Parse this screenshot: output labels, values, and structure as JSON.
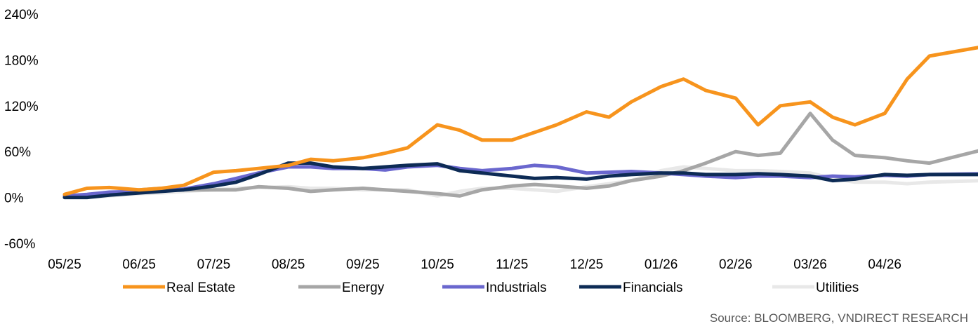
{
  "chart_data": {
    "type": "line",
    "title": "",
    "xlabel": "",
    "ylabel": "",
    "y_unit": "%",
    "ylim": [
      -60,
      240
    ],
    "y_ticks": [
      -60,
      0,
      60,
      120,
      180,
      240
    ],
    "y_tick_labels": [
      "-60%",
      "0%",
      "60%",
      "120%",
      "180%",
      "240%"
    ],
    "x_ticks": [
      "05/25",
      "06/25",
      "07/25",
      "08/25",
      "09/25",
      "10/25",
      "11/25",
      "12/25",
      "01/26",
      "02/26",
      "03/26",
      "04/26"
    ],
    "grid": false,
    "legend_position": "bottom",
    "series": [
      {
        "name": "Real Estate",
        "color": "#F7941D",
        "x": [
          0.0,
          0.3,
          0.6,
          1.0,
          1.3,
          1.6,
          2.0,
          2.3,
          2.6,
          3.0,
          3.3,
          3.6,
          4.0,
          4.3,
          4.6,
          5.0,
          5.3,
          5.6,
          6.0,
          6.3,
          6.6,
          7.0,
          7.3,
          7.6,
          8.0,
          8.3,
          8.6,
          9.0,
          9.3,
          9.6,
          10.0,
          10.3,
          10.6,
          11.0,
          11.3,
          11.6,
          12.3
        ],
        "values": [
          4,
          12,
          13,
          10,
          12,
          16,
          33,
          35,
          38,
          42,
          50,
          48,
          52,
          58,
          65,
          95,
          88,
          75,
          75,
          85,
          95,
          112,
          105,
          125,
          145,
          155,
          140,
          130,
          95,
          120,
          125,
          105,
          95,
          110,
          155,
          185,
          197
        ]
      },
      {
        "name": "Energy",
        "color": "#A6A6A6",
        "x": [
          0.0,
          0.3,
          0.6,
          1.0,
          1.3,
          1.6,
          2.0,
          2.3,
          2.6,
          3.0,
          3.3,
          3.6,
          4.0,
          4.3,
          4.6,
          5.0,
          5.3,
          5.6,
          6.0,
          6.3,
          6.6,
          7.0,
          7.3,
          7.6,
          8.0,
          8.3,
          8.6,
          9.0,
          9.3,
          9.6,
          10.0,
          10.3,
          10.6,
          11.0,
          11.3,
          11.6,
          12.3
        ],
        "values": [
          0,
          2,
          5,
          10,
          12,
          10,
          10,
          10,
          14,
          12,
          8,
          10,
          12,
          10,
          8,
          5,
          2,
          10,
          15,
          17,
          15,
          12,
          15,
          22,
          28,
          35,
          45,
          60,
          55,
          58,
          110,
          75,
          55,
          52,
          48,
          45,
          62
        ]
      },
      {
        "name": "Industrials",
        "color": "#6A67CE",
        "x": [
          0.0,
          0.3,
          0.6,
          1.0,
          1.3,
          1.6,
          2.0,
          2.3,
          2.6,
          3.0,
          3.3,
          3.6,
          4.0,
          4.3,
          4.6,
          5.0,
          5.3,
          5.6,
          6.0,
          6.3,
          6.6,
          7.0,
          7.3,
          7.6,
          8.0,
          8.3,
          8.6,
          9.0,
          9.3,
          9.6,
          10.0,
          10.3,
          10.6,
          11.0,
          11.3,
          11.6,
          12.3
        ],
        "values": [
          2,
          4,
          7,
          8,
          9,
          11,
          18,
          25,
          32,
          40,
          40,
          38,
          38,
          36,
          40,
          42,
          38,
          35,
          38,
          42,
          40,
          32,
          33,
          34,
          32,
          30,
          28,
          26,
          28,
          28,
          26,
          28,
          27,
          29,
          28,
          30,
          31
        ]
      },
      {
        "name": "Financials",
        "color": "#0D2B55",
        "x": [
          0.0,
          0.3,
          0.6,
          1.0,
          1.3,
          1.6,
          2.0,
          2.3,
          2.6,
          3.0,
          3.3,
          3.6,
          4.0,
          4.3,
          4.6,
          5.0,
          5.3,
          5.6,
          6.0,
          6.3,
          6.6,
          7.0,
          7.3,
          7.6,
          8.0,
          8.3,
          8.6,
          9.0,
          9.3,
          9.6,
          10.0,
          10.3,
          10.6,
          11.0,
          11.3,
          11.6,
          12.3
        ],
        "values": [
          0,
          0,
          3,
          6,
          8,
          10,
          15,
          20,
          30,
          45,
          45,
          40,
          38,
          40,
          42,
          44,
          35,
          32,
          28,
          25,
          26,
          24,
          28,
          30,
          32,
          32,
          30,
          30,
          31,
          30,
          28,
          22,
          24,
          30,
          29,
          30,
          30
        ]
      },
      {
        "name": "Utilities",
        "color": "#E8E8E8",
        "x": [
          0.0,
          0.3,
          0.6,
          1.0,
          1.3,
          1.6,
          2.0,
          2.3,
          2.6,
          3.0,
          3.3,
          3.6,
          4.0,
          4.3,
          4.6,
          5.0,
          5.3,
          5.6,
          6.0,
          6.3,
          6.6,
          7.0,
          7.3,
          7.6,
          8.0,
          8.3,
          8.6,
          9.0,
          9.3,
          9.6,
          10.0,
          10.3,
          10.6,
          11.0,
          11.3,
          11.6,
          12.3
        ],
        "values": [
          0,
          0,
          2,
          5,
          6,
          8,
          10,
          12,
          13,
          14,
          12,
          12,
          10,
          10,
          10,
          2,
          8,
          12,
          12,
          10,
          8,
          14,
          18,
          22,
          35,
          40,
          38,
          35,
          35,
          34,
          32,
          25,
          20,
          20,
          18,
          20,
          22
        ]
      }
    ]
  },
  "source": "Source: BLOOMBERG, VNDIRECT RESEARCH"
}
